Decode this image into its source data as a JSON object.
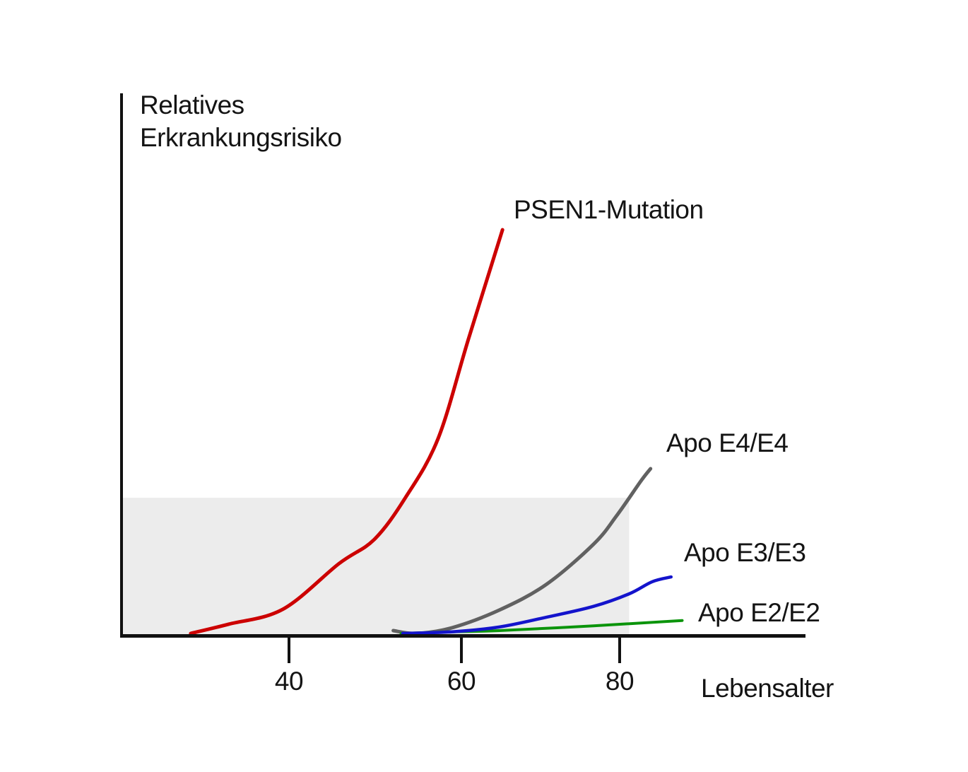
{
  "chart_data": {
    "type": "line",
    "title": "",
    "xlabel": "Lebensalter",
    "ylabel": "Relatives Erkrankungsrisiko",
    "ylabel_lines": [
      "Relatives",
      "Erkrankungsrisiko"
    ],
    "x_ticks": [
      40,
      60,
      80
    ],
    "x_range_years": [
      27,
      88
    ],
    "y_axis_numeric": false,
    "y_units": "relative risk, schematic 0-100 (axis unlabeled)",
    "grid": false,
    "legend_position": "labels at curve ends",
    "series": [
      {
        "name": "PSEN1-Mutation",
        "color": "#cc0000",
        "points": [
          [
            28.6,
            0
          ],
          [
            33.0,
            2.3
          ],
          [
            39.3,
            6.0
          ],
          [
            45.8,
            17.3
          ],
          [
            49.9,
            23.3
          ],
          [
            53.5,
            33.6
          ],
          [
            57.3,
            48.3
          ],
          [
            60.9,
            73.0
          ],
          [
            65.2,
            100
          ]
        ]
      },
      {
        "name": "Apo E4/E4",
        "color": "#616161",
        "points": [
          [
            52.1,
            0.7
          ],
          [
            54.8,
            0
          ],
          [
            58.9,
            1.4
          ],
          [
            64.8,
            5.8
          ],
          [
            70.7,
            12.1
          ],
          [
            76.7,
            22.1
          ],
          [
            79.6,
            29.1
          ],
          [
            82.7,
            37.8
          ],
          [
            83.9,
            40.8
          ]
        ]
      },
      {
        "name": "Apo E3/E3",
        "color": "#1414cc",
        "points": [
          [
            53.2,
            0
          ],
          [
            58.9,
            0.4
          ],
          [
            64.8,
            1.6
          ],
          [
            70.7,
            4.0
          ],
          [
            76.7,
            6.7
          ],
          [
            81.2,
            9.8
          ],
          [
            84.1,
            12.8
          ],
          [
            86.5,
            14.0
          ]
        ]
      },
      {
        "name": "Apo E2/E2",
        "color": "#0b940b",
        "points": [
          [
            53.0,
            0
          ],
          [
            58.9,
            0.4
          ],
          [
            64.8,
            0.7
          ],
          [
            76.7,
            1.9
          ],
          [
            87.9,
            3.2
          ]
        ]
      }
    ],
    "shaded_region": {
      "color": "#ececec",
      "from": "y-axis",
      "to_age": 81.2,
      "risk_from": 0,
      "risk_to": 33.6
    }
  }
}
